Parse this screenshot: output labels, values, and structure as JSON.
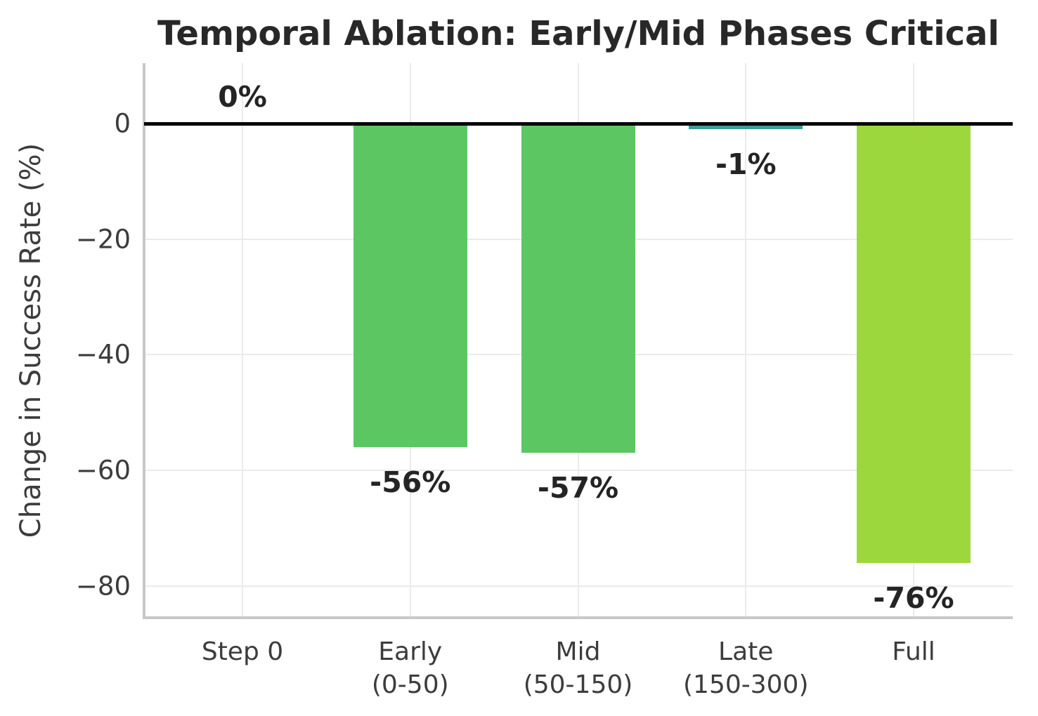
{
  "chart_data": {
    "type": "bar",
    "title": "Temporal Ablation: Early/Mid Phases Critical",
    "xlabel": "",
    "ylabel": "Change in Success Rate (%)",
    "categories": [
      "Step 0",
      "Early\n(0-50)",
      "Mid\n(50-150)",
      "Late\n(150-300)",
      "Full"
    ],
    "values": [
      0,
      -56,
      -57,
      -1,
      -76
    ],
    "bar_value_labels": [
      "0%",
      "-56%",
      "-57%",
      "-1%",
      "-76%"
    ],
    "bar_colors": [
      null,
      "#5cc663",
      "#5cc663",
      "#3a9e99",
      "#9cd83d"
    ],
    "yticks": [
      0,
      -20,
      -40,
      -60,
      -80
    ],
    "ytick_labels": [
      "0",
      "−20",
      "−40",
      "−60",
      "−80"
    ],
    "ylim": [
      -85,
      10
    ],
    "grid": true,
    "legend": false
  },
  "colors": {
    "bar_green": "#5cc663",
    "bar_teal": "#3a9e99",
    "bar_yellowgreen": "#9cd83d",
    "zero_line": "#000000",
    "gridline": "#ebebeb",
    "spine": "#c8c8c8",
    "title_text": "#282828",
    "tick_text": "#3c3c3c",
    "background": "#ffffff"
  }
}
